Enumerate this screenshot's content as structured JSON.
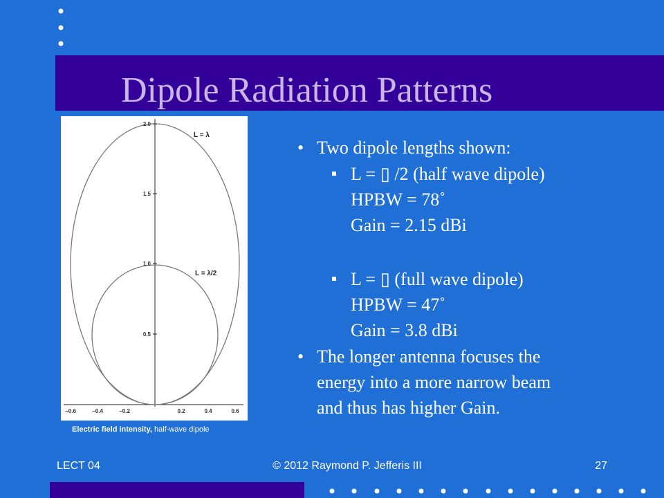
{
  "header": {
    "title": "Dipole Radiation Patterns"
  },
  "figure": {
    "y_ticks": [
      "2.0",
      "1.5",
      "1.0",
      "0.5"
    ],
    "x_ticks": [
      "−0.6",
      "−0.4",
      "−0.2",
      "0.2",
      "0.4",
      "0.6"
    ],
    "labels": [
      "L = λ",
      "L = λ/2"
    ],
    "caption": {
      "bold": "Electric field intensity,",
      "rest": "half-wave dipole"
    }
  },
  "bullets": [
    {
      "text": "Two dipole lengths shown:",
      "items": [
        {
          "lines": [
            "L = ▯ /2 (half wave dipole)",
            "HPBW = 78˚",
            "Gain = 2.15 dBi"
          ]
        },
        {
          "lines": [
            "L = ▯ (full wave dipole)",
            "HPBW = 47˚",
            "Gain = 3.8 dBi"
          ]
        }
      ]
    },
    {
      "text": "The longer antenna focuses the",
      "more": [
        "energy into a more narrow beam",
        "and thus has higher Gain."
      ]
    }
  ],
  "footer": {
    "left": "LECT 04",
    "center": "© 2012 Raymond P. Jefferis III",
    "right": "27"
  }
}
